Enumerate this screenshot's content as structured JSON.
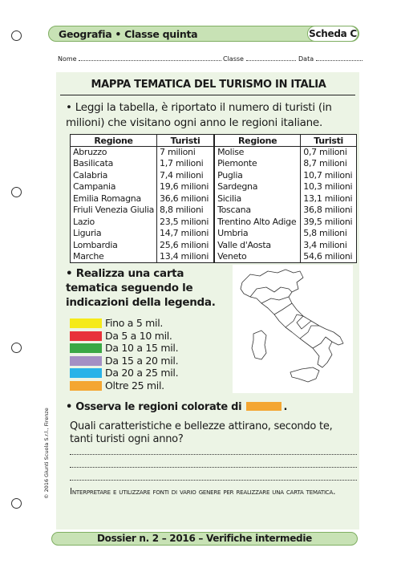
{
  "header": {
    "title": "Geografia • Classe quinta",
    "scheda": "Scheda C"
  },
  "fields": {
    "nome": "Nome",
    "classe": "Classe",
    "data": "Data"
  },
  "title": "MAPPA TEMATICA DEL TURISMO IN ITALIA",
  "intro": "• Leggi la tabella, è riportato il numero di turisti (in milioni) che visitano ogni anno le regioni italiane.",
  "table": {
    "headers": [
      "Regione",
      "Turisti",
      "Regione",
      "Turisti"
    ],
    "rows": [
      [
        "Abruzzo",
        "7 milioni",
        "Molise",
        "0,7 milioni"
      ],
      [
        "Basilicata",
        "1,7 milioni",
        "Piemonte",
        "8,7 milioni"
      ],
      [
        "Calabria",
        "7,4 milioni",
        "Puglia",
        "10,7 milioni"
      ],
      [
        "Campania",
        "19,6 milioni",
        "Sardegna",
        "10,3 milioni"
      ],
      [
        "Emilia Romagna",
        "36,6 milioni",
        "Sicilia",
        "13,1 milioni"
      ],
      [
        "Friuli Venezia Giulia",
        "8,8 milioni",
        "Toscana",
        "36,8 milioni"
      ],
      [
        "Lazio",
        "23,5 milioni",
        "Trentino Alto Adige",
        "39,5 milioni"
      ],
      [
        "Liguria",
        "14,7 milioni",
        "Umbria",
        "5,8 milioni"
      ],
      [
        "Lombardia",
        "25,6 milioni",
        "Valle d'Aosta",
        "3,4 milioni"
      ],
      [
        "Marche",
        "13,4 milioni",
        "Veneto",
        "54,6 milioni"
      ]
    ]
  },
  "task2": "• Realizza una carta tematica seguendo le indicazioni della legenda.",
  "legend": [
    {
      "label": "Fino a 5 mil.",
      "color": "#f5ea19"
    },
    {
      "label": "Da 5 a 10 mil.",
      "color": "#e8323a"
    },
    {
      "label": "Da 10 a 15 mil.",
      "color": "#3aa845"
    },
    {
      "label": "Da 15 a 20 mil.",
      "color": "#a48fc4"
    },
    {
      "label": "Da 20 a 25 mil.",
      "color": "#29b3e8"
    },
    {
      "label": "Oltre 25 mil.",
      "color": "#f4a632"
    }
  ],
  "task3": {
    "text": "• Osserva le regioni colorate di",
    "end": ".",
    "swatch_color": "#f4a632"
  },
  "question": "Quali caratteristiche e bellezze attirano, secondo te, tanti turisti ogni anno?",
  "objective": "Interpretare e utilizzare fonti di vario genere per realizzare una carta tematica.",
  "copyright": "© 2016 Giunti Scuola S.r.l., Firenze",
  "footer": "Dossier n. 2 – 2016 – Verifiche intermedie"
}
